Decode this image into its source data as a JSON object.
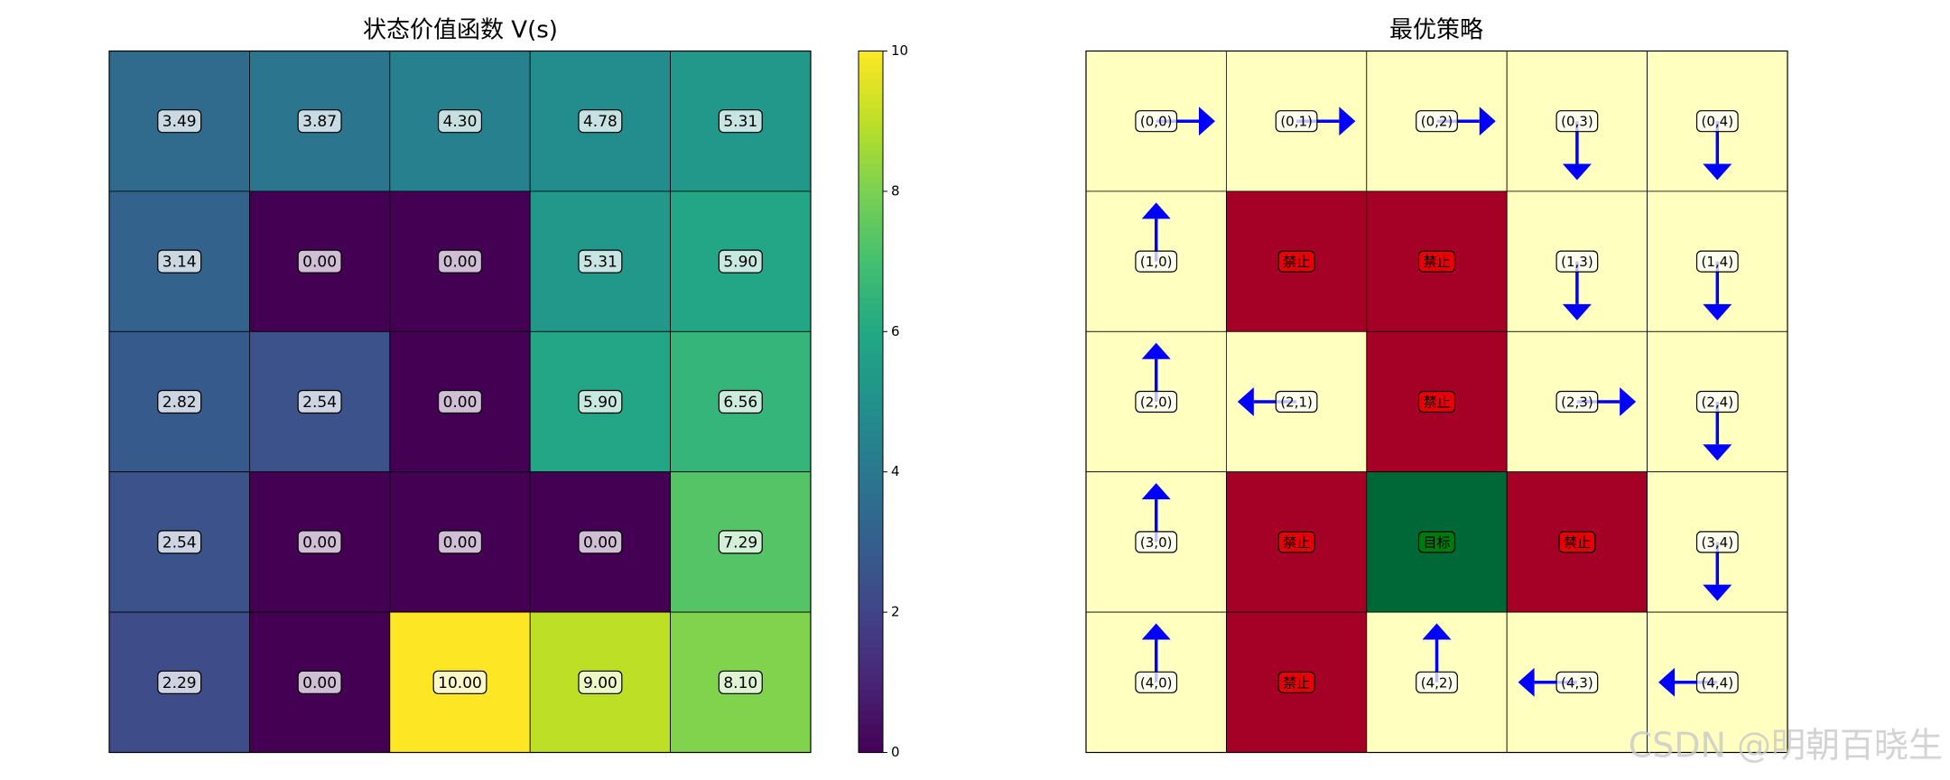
{
  "chart_data": [
    {
      "type": "heatmap",
      "title": "状态价值函数 V(s)",
      "colormap": "viridis",
      "values": [
        [
          3.49,
          3.87,
          4.3,
          4.78,
          5.31
        ],
        [
          3.14,
          0,
          0,
          5.31,
          5.9
        ],
        [
          2.82,
          2.54,
          0,
          5.9,
          6.56
        ],
        [
          2.54,
          0,
          0,
          0,
          7.29
        ],
        [
          2.29,
          0,
          10,
          9,
          8.1
        ]
      ],
      "value_labels": [
        [
          "3.49",
          "3.87",
          "4.30",
          "4.78",
          "5.31"
        ],
        [
          "3.14",
          "0.00",
          "0.00",
          "5.31",
          "5.90"
        ],
        [
          "2.82",
          "2.54",
          "0.00",
          "5.90",
          "6.56"
        ],
        [
          "2.54",
          "0.00",
          "0.00",
          "0.00",
          "7.29"
        ],
        [
          "2.29",
          "0.00",
          "10.00",
          "9.00",
          "8.10"
        ]
      ],
      "clim": [
        0,
        10
      ],
      "cticks": [
        0,
        2,
        4,
        6,
        8,
        10
      ]
    },
    {
      "type": "policy",
      "title": "最优策略",
      "arrow_color": "#0000ff",
      "labels": [
        [
          "(0,0)",
          "(0,1)",
          "(0,2)",
          "(0,3)",
          "(0,4)"
        ],
        [
          "(1,0)",
          "禁止",
          "禁止",
          "(1,3)",
          "(1,4)"
        ],
        [
          "(2,0)",
          "(2,1)",
          "禁止",
          "(2,3)",
          "(2,4)"
        ],
        [
          "(3,0)",
          "禁止",
          "目标",
          "禁止",
          "(3,4)"
        ],
        [
          "(4,0)",
          "禁止",
          "(4,2)",
          "(4,3)",
          "(4,4)"
        ]
      ],
      "cell_colors": [
        [
          "#ffffbf",
          "#ffffbf",
          "#ffffbf",
          "#ffffbf",
          "#ffffbf"
        ],
        [
          "#ffffbf",
          "#a50026",
          "#a50026",
          "#ffffbf",
          "#ffffbf"
        ],
        [
          "#ffffbf",
          "#ffffbf",
          "#a50026",
          "#ffffbf",
          "#ffffbf"
        ],
        [
          "#ffffbf",
          "#a50026",
          "#006837",
          "#a50026",
          "#ffffbf"
        ],
        [
          "#ffffbf",
          "#a50026",
          "#ffffbf",
          "#ffffbf",
          "#ffffbf"
        ]
      ],
      "label_colors": [
        [
          "#ffffff",
          "#ffffff",
          "#ffffff",
          "#ffffff",
          "#ffffff"
        ],
        [
          "#ffffff",
          "#ff0000",
          "#ff0000",
          "#ffffff",
          "#ffffff"
        ],
        [
          "#ffffff",
          "#ffffff",
          "#ff0000",
          "#ffffff",
          "#ffffff"
        ],
        [
          "#ffffff",
          "#ff0000",
          "#008000",
          "#ff0000",
          "#ffffff"
        ],
        [
          "#ffffff",
          "#ff0000",
          "#ffffff",
          "#ffffff",
          "#ffffff"
        ]
      ],
      "actions": [
        [
          "right",
          "right",
          "right",
          "down",
          "down"
        ],
        [
          "up",
          null,
          null,
          "down",
          "down"
        ],
        [
          "up",
          "left",
          null,
          "right",
          "down"
        ],
        [
          "up",
          null,
          null,
          null,
          "down"
        ],
        [
          "up",
          null,
          "up",
          "left",
          "left"
        ]
      ]
    },
    {
      "type": "watermark",
      "text": "CSDN @明朝百晓生"
    }
  ]
}
